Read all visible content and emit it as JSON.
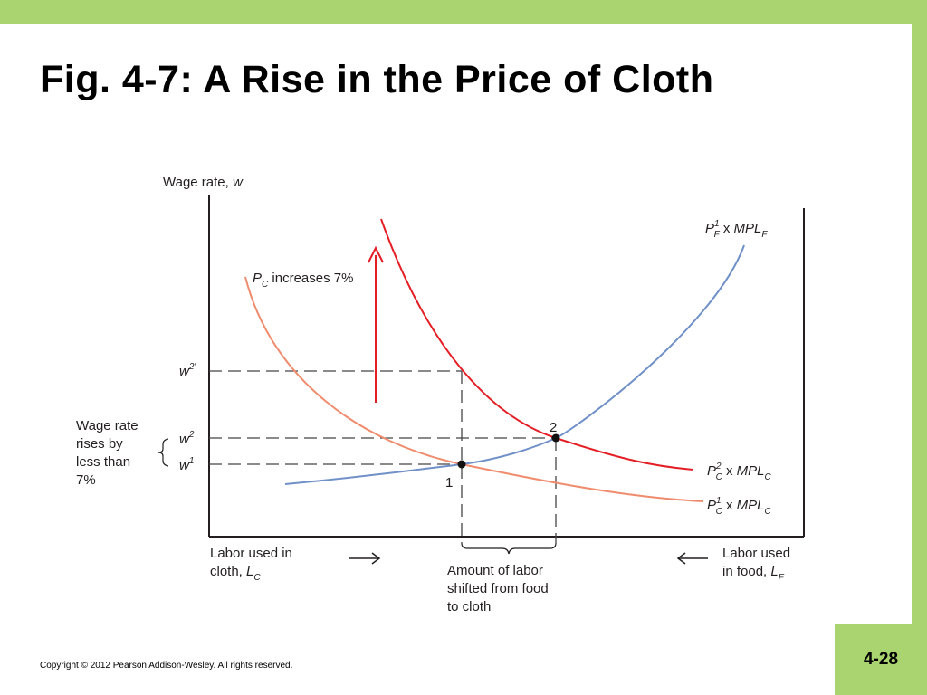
{
  "slide": {
    "title": "Fig. 4-7: A Rise in the Price of Cloth",
    "copyright": "Copyright © 2012 Pearson Addison-Wesley. All rights reserved.",
    "page_number": "4-28",
    "accent_color": "#a9d46f"
  },
  "chart_data": {
    "type": "line",
    "title": "",
    "ylabel": "Wage rate, w",
    "x_left_label": "Labor used in cloth, L_C",
    "x_right_label": "Labor used in food, L_F",
    "series": [
      {
        "name": "P_C^1 x MPL_C",
        "color": "#f08c6e",
        "role": "cloth demand (initial)"
      },
      {
        "name": "P_C^2 x MPL_C",
        "color": "#e31e24",
        "role": "cloth demand (after price rise)"
      },
      {
        "name": "P_F^1 x MPL_F",
        "color": "#7090c8",
        "role": "food demand"
      }
    ],
    "wage_levels": [
      "w^1",
      "w^2",
      "w^2′"
    ],
    "points": [
      {
        "label": "1",
        "description": "initial equilibrium at w^1"
      },
      {
        "label": "2",
        "description": "new equilibrium at w^2"
      }
    ],
    "annotations": {
      "shift": "P_C increases 7%",
      "wage_note": "Wage rate rises by less than 7%",
      "labor_shift": "Amount of labor shifted from food to cloth"
    }
  }
}
